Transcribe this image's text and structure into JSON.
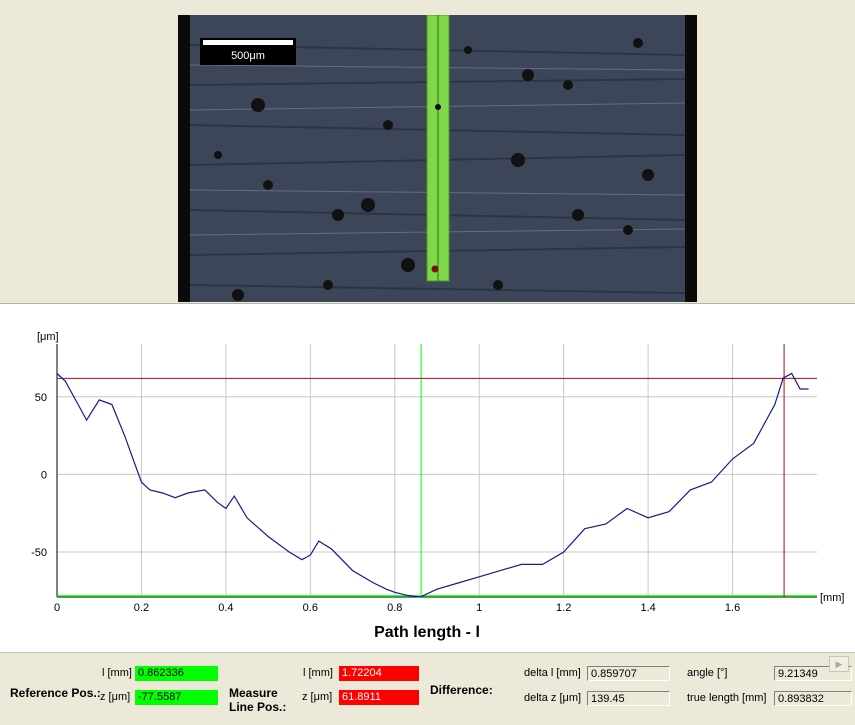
{
  "image": {
    "scale_bar_label": "500μm",
    "colors": {
      "background": "#3d4658",
      "track": "#7fd84a",
      "marker": "#7a0f0f"
    }
  },
  "chart_data": {
    "type": "line",
    "title": "",
    "xlabel": "Path length - l",
    "ylabel": "[μm]",
    "x_unit": "[mm]",
    "xlim": [
      0,
      1.8
    ],
    "ylim": [
      -79,
      84
    ],
    "x_ticks": [
      0,
      0.2,
      0.4,
      0.6,
      0.8,
      1,
      1.2,
      1.4,
      1.6
    ],
    "x_tick_labels": [
      "0",
      "0.2",
      "0.4",
      "0.6",
      "0.8",
      "1",
      "1.2",
      "1.4",
      "1.6"
    ],
    "y_ticks": [
      -50,
      0,
      50
    ],
    "y_tick_labels": [
      "-50",
      "0",
      "50"
    ],
    "grid": true,
    "reference_line_x": 0.862336,
    "measure_line_x": 1.72204,
    "measure_line_y": 61.8911,
    "series": [
      {
        "color": "#1a1a8c",
        "x": [
          0,
          0.02,
          0.05,
          0.07,
          0.1,
          0.13,
          0.16,
          0.2,
          0.22,
          0.25,
          0.28,
          0.31,
          0.35,
          0.38,
          0.4,
          0.42,
          0.45,
          0.5,
          0.55,
          0.58,
          0.6,
          0.62,
          0.65,
          0.7,
          0.75,
          0.78,
          0.8,
          0.83,
          0.86,
          0.9,
          0.95,
          1.0,
          1.05,
          1.1,
          1.15,
          1.2,
          1.25,
          1.3,
          1.35,
          1.4,
          1.45,
          1.5,
          1.55,
          1.6,
          1.65,
          1.7,
          1.72,
          1.74,
          1.76,
          1.78
        ],
        "y": [
          65,
          60,
          45,
          35,
          48,
          45,
          25,
          -5,
          -10,
          -12,
          -15,
          -12,
          -10,
          -18,
          -22,
          -14,
          -28,
          -40,
          -50,
          -55,
          -52,
          -43,
          -48,
          -62,
          -70,
          -74,
          -76,
          -78,
          -79,
          -74,
          -70,
          -66,
          -62,
          -58,
          -58,
          -50,
          -35,
          -32,
          -22,
          -28,
          -24,
          -10,
          -5,
          10,
          20,
          45,
          62,
          65,
          55,
          55
        ]
      }
    ]
  },
  "status": {
    "reference_pos_label": "Reference Pos.:",
    "ref_l_label": "l [mm]",
    "ref_l_value": "0.862336",
    "ref_z_label": "z [μm]",
    "ref_z_value": "-77.5587",
    "measure_pos_label": "Measure Line Pos.:",
    "meas_l_label": "l [mm]",
    "meas_l_value": "1.72204",
    "meas_z_label": "z [μm]",
    "meas_z_value": "61.8911",
    "difference_label": "Difference:",
    "delta_l_label": "delta l [mm]",
    "delta_l_value": "0.859707",
    "delta_z_label": "delta z [μm]",
    "delta_z_value": "139.45",
    "angle_label": "angle [°]",
    "angle_value": "9.21349",
    "true_length_label": "true length [mm]",
    "true_length_value": "0.893832",
    "ref_color": "#00ff00",
    "meas_color": "#ff0000"
  }
}
